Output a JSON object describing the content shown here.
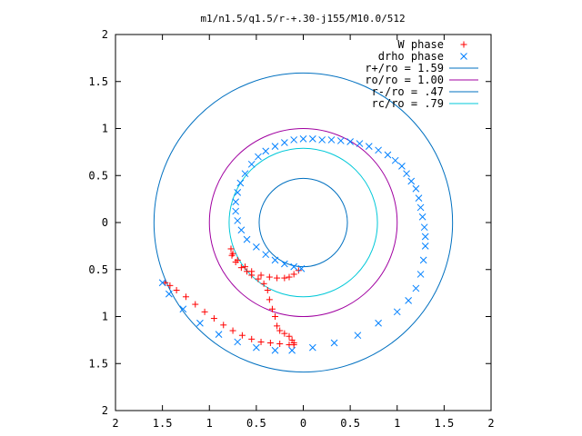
{
  "chart_data": {
    "type": "scatter",
    "title": "m1/n1.5/q1.5/r-+.30-j155/M10.0/512",
    "xlim": [
      -2,
      2
    ],
    "ylim": [
      -2,
      2
    ],
    "x_ticks": [
      "2",
      "1.5",
      "1",
      "0.5",
      "0",
      "0.5",
      "1",
      "1.5",
      "2"
    ],
    "y_ticks": [
      "2",
      "1.5",
      "1",
      "0.5",
      "0",
      "0.5",
      "1",
      "1.5",
      "2"
    ],
    "legend_position": "top-right",
    "grid": false,
    "legend": [
      {
        "label": "W phase",
        "color": "#ff0000",
        "marker": "+"
      },
      {
        "label": "drho phase",
        "color": "#0080ff",
        "marker": "x"
      },
      {
        "label": "r+/ro = 1.59",
        "color": "#0070c0",
        "marker": "line"
      },
      {
        "label": "ro/ro = 1.00",
        "color": "#a000a0",
        "marker": "line"
      },
      {
        "label": "r-/ro = .47",
        "color": "#0070c0",
        "marker": "line"
      },
      {
        "label": "rc/ro = .79",
        "color": "#00c8d8",
        "marker": "line"
      }
    ],
    "circles": [
      {
        "name": "r+/ro = 1.59",
        "r": 1.59,
        "color": "#0070c0"
      },
      {
        "name": "ro/ro = 1.00",
        "r": 1.0,
        "color": "#a000a0"
      },
      {
        "name": "r-/ro = .47",
        "r": 0.47,
        "color": "#0070c0"
      },
      {
        "name": "rc/ro = .79",
        "r": 0.79,
        "color": "#00c8d8"
      }
    ],
    "series": [
      {
        "name": "W phase",
        "marker": "+",
        "color": "#ff0000",
        "x": [
          -0.05,
          -0.1,
          -0.15,
          -0.2,
          -0.28,
          -0.36,
          -0.45,
          -0.55,
          -0.62,
          -0.7,
          -0.75,
          -0.77,
          -0.76,
          -0.72,
          -0.66,
          -0.6,
          -0.55,
          -0.48,
          -0.42,
          -0.38,
          -0.36,
          -0.33,
          -0.3,
          -0.28,
          -0.25,
          -0.2,
          -0.15,
          -0.12,
          -0.1,
          -0.1,
          -0.15,
          -0.25,
          -0.35,
          -0.45,
          -0.55,
          -0.65,
          -0.75,
          -0.85,
          -0.95,
          -1.05,
          -1.15,
          -1.25,
          -1.35,
          -1.42,
          -1.47
        ],
        "y": [
          -0.51,
          -0.55,
          -0.58,
          -0.59,
          -0.59,
          -0.58,
          -0.56,
          -0.52,
          -0.47,
          -0.4,
          -0.33,
          -0.28,
          -0.35,
          -0.42,
          -0.48,
          -0.52,
          -0.56,
          -0.6,
          -0.65,
          -0.72,
          -0.82,
          -0.92,
          -1.0,
          -1.1,
          -1.15,
          -1.18,
          -1.21,
          -1.25,
          -1.28,
          -1.3,
          -1.3,
          -1.29,
          -1.28,
          -1.27,
          -1.24,
          -1.2,
          -1.15,
          -1.09,
          -1.02,
          -0.95,
          -0.87,
          -0.79,
          -0.72,
          -0.67,
          -0.64
        ]
      },
      {
        "name": "drho phase",
        "marker": "x",
        "color": "#0080ff",
        "x": [
          -0.02,
          -0.1,
          -0.2,
          -0.3,
          -0.4,
          -0.5,
          -0.6,
          -0.66,
          -0.7,
          -0.72,
          -0.72,
          -0.7,
          -0.67,
          -0.62,
          -0.55,
          -0.48,
          -0.4,
          -0.3,
          -0.2,
          -0.1,
          0.0,
          0.1,
          0.2,
          0.3,
          0.4,
          0.5,
          0.6,
          0.7,
          0.8,
          0.9,
          0.98,
          1.05,
          1.1,
          1.15,
          1.2,
          1.23,
          1.25,
          1.27,
          1.29,
          1.3,
          1.3,
          1.28,
          1.25,
          1.2,
          1.12,
          1.0,
          0.8,
          0.58,
          0.33,
          0.1,
          -0.12,
          -0.3,
          -0.5,
          -0.7,
          -0.9,
          -1.1,
          -1.28,
          -1.43,
          -1.5
        ],
        "y": [
          -0.49,
          -0.47,
          -0.44,
          -0.4,
          -0.34,
          -0.26,
          -0.18,
          -0.08,
          0.02,
          0.12,
          0.22,
          0.32,
          0.42,
          0.52,
          0.62,
          0.7,
          0.76,
          0.81,
          0.85,
          0.88,
          0.89,
          0.89,
          0.88,
          0.88,
          0.87,
          0.86,
          0.84,
          0.81,
          0.77,
          0.72,
          0.66,
          0.6,
          0.52,
          0.44,
          0.36,
          0.26,
          0.16,
          0.06,
          -0.05,
          -0.15,
          -0.25,
          -0.4,
          -0.55,
          -0.7,
          -0.83,
          -0.95,
          -1.07,
          -1.2,
          -1.28,
          -1.33,
          -1.36,
          -1.36,
          -1.33,
          -1.27,
          -1.19,
          -1.07,
          -0.92,
          -0.76,
          -0.64
        ]
      }
    ]
  }
}
